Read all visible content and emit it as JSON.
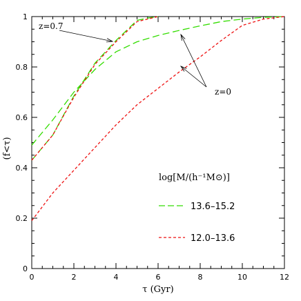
{
  "chart_data": {
    "type": "line",
    "xlabel": "τ (Gyr)",
    "ylabel": "(f<τ)",
    "xlim": [
      0,
      12
    ],
    "ylim": [
      0,
      1
    ],
    "xticks": [
      "0",
      "2",
      "4",
      "6",
      "8",
      "10",
      "12"
    ],
    "yticks": [
      "0",
      "0.2",
      "0.4",
      "0.6",
      "0.8",
      "1"
    ],
    "legend_title": "log[M/(h⁻¹M⊙)]",
    "legend_placement": "center-right",
    "series": [
      {
        "name": "13.6–15.2",
        "z": "0",
        "color": "#33dd00",
        "style": "long-dash",
        "x": [
          0,
          1,
          2,
          3,
          4,
          5,
          6,
          7,
          8,
          9,
          10,
          11,
          12
        ],
        "y": [
          0.49,
          0.59,
          0.7,
          0.79,
          0.86,
          0.9,
          0.925,
          0.945,
          0.963,
          0.98,
          0.99,
          0.997,
          1.0
        ]
      },
      {
        "name": "12.0–13.6",
        "z": "0",
        "color": "#ee1111",
        "style": "short-dash",
        "x": [
          0,
          1,
          2,
          3,
          4,
          5,
          6,
          7,
          8,
          9,
          10,
          11,
          12
        ],
        "y": [
          0.19,
          0.3,
          0.39,
          0.48,
          0.57,
          0.65,
          0.715,
          0.78,
          0.84,
          0.905,
          0.965,
          0.99,
          1.0
        ]
      },
      {
        "name": "13.6–15.2",
        "z": "0.7",
        "color": "#33dd00",
        "style": "long-dash",
        "x": [
          0,
          1,
          2,
          3,
          4,
          5,
          5.5,
          6
        ],
        "y": [
          0.43,
          0.53,
          0.685,
          0.815,
          0.905,
          0.985,
          0.994,
          1.0
        ]
      },
      {
        "name": "12.0–13.6",
        "z": "0.7",
        "color": "#ee1111",
        "style": "short-dash",
        "x": [
          0,
          1,
          2,
          3,
          4,
          5,
          5.5,
          6
        ],
        "y": [
          0.43,
          0.53,
          0.68,
          0.81,
          0.9,
          0.98,
          0.99,
          1.0
        ]
      }
    ],
    "annotations": [
      {
        "text": "z=0.7"
      },
      {
        "text": "z=0"
      }
    ]
  }
}
